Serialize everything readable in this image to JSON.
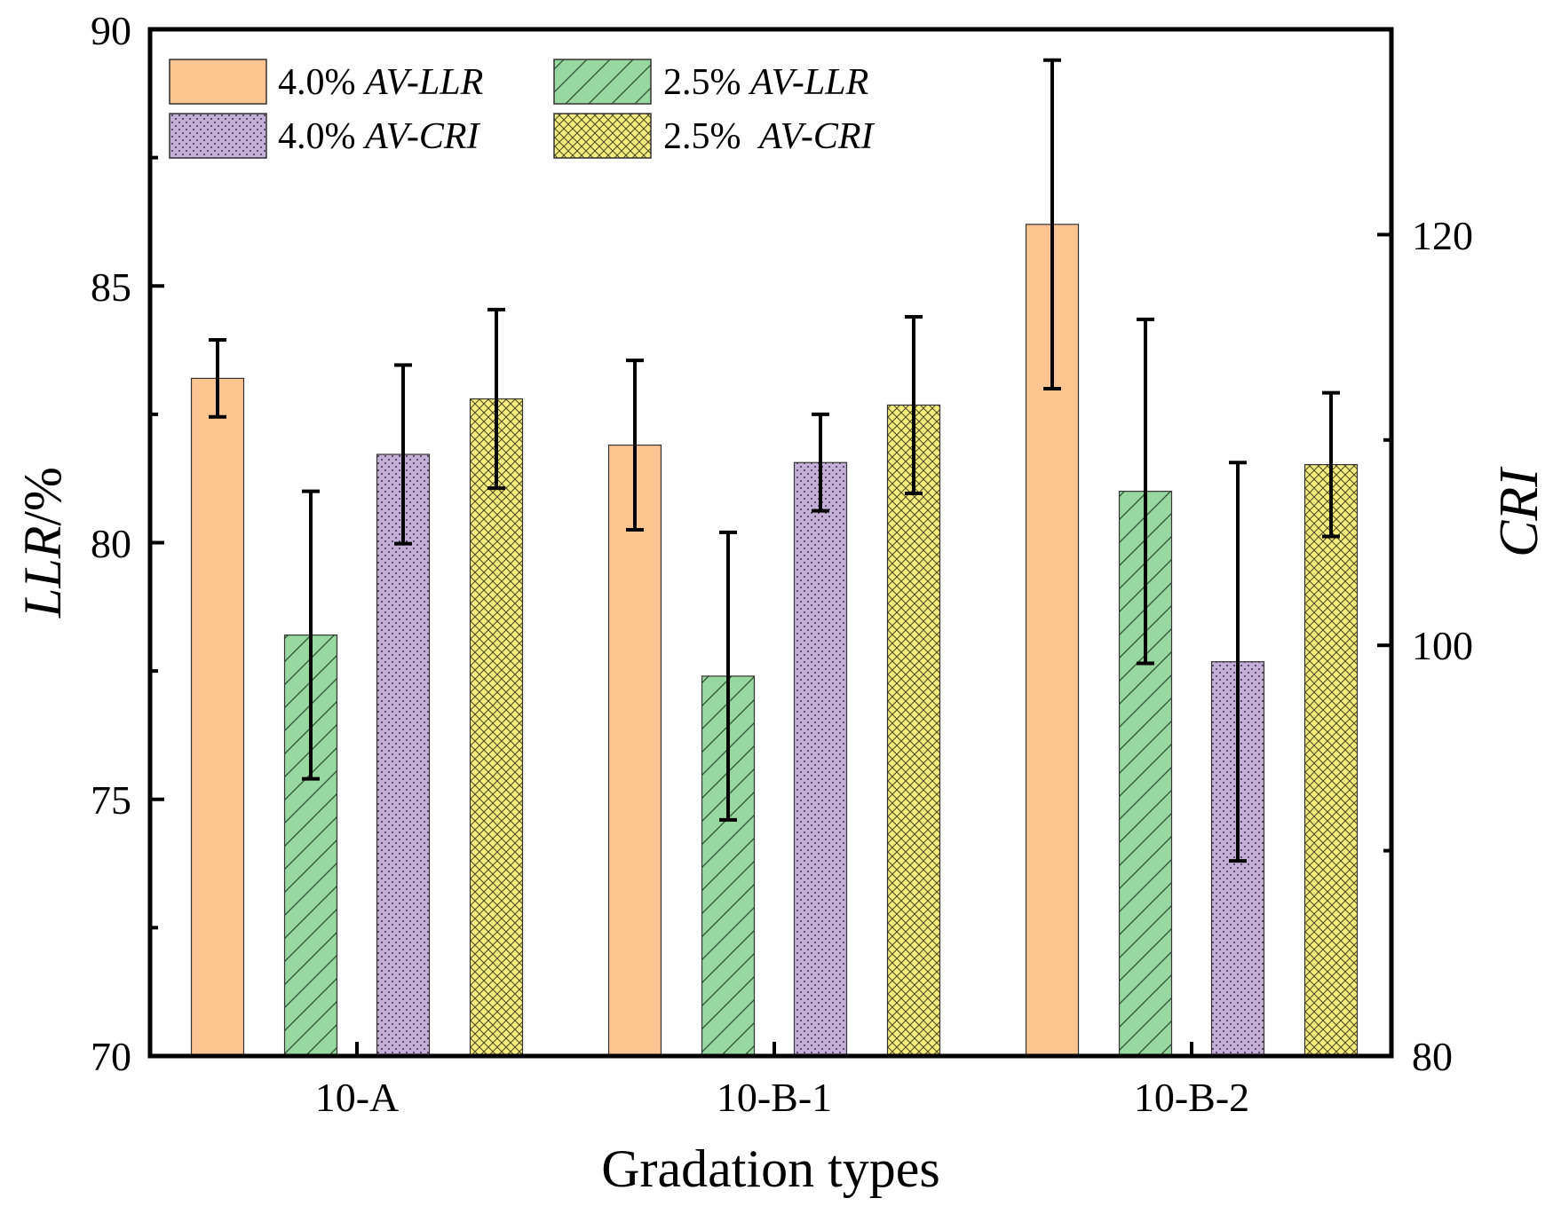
{
  "chart_data": {
    "type": "bar",
    "xlabel": "Gradation types",
    "ylabel_left": {
      "italic": "LLR",
      "plain": "/%"
    },
    "ylabel_right": "CRI",
    "categories": [
      "10-A",
      "10-B-1",
      "10-B-2"
    ],
    "y_left": {
      "lim": [
        70,
        90
      ],
      "ticks": [
        "70",
        "75",
        "80",
        "85",
        "90"
      ],
      "tick_values": [
        70,
        75,
        80,
        85,
        90
      ]
    },
    "y_right": {
      "lim": [
        80,
        130
      ],
      "ticks": [
        "80",
        "100",
        "120"
      ],
      "tick_values": [
        80,
        100,
        120
      ]
    },
    "grid": false,
    "legend_position": "top-left",
    "colors": {
      "llr_4": "#fbc592",
      "llr_25": "#98d8a0",
      "cri_4": "#c3aed8",
      "cri_25": "#f4ec7e",
      "edge": "#333333"
    },
    "series": [
      {
        "key": "llr_4",
        "legend_plain": "4.0%",
        "legend_italic": "AV-LLR",
        "axis": "left",
        "pattern": "solid",
        "values": [
          83.2,
          81.9,
          86.2
        ],
        "errors": [
          0.75,
          1.65,
          3.2
        ]
      },
      {
        "key": "llr_25",
        "legend_plain": "2.5%",
        "legend_italic": "AV-LLR",
        "axis": "left",
        "pattern": "hatch",
        "values": [
          78.2,
          77.4,
          81.0
        ],
        "errors": [
          2.8,
          2.8,
          3.35
        ]
      },
      {
        "key": "cri_4",
        "legend_plain": "4.0%",
        "legend_italic": "AV-CRI",
        "axis": "right",
        "pattern": "dots",
        "values": [
          109.3,
          108.9,
          99.2
        ],
        "errors": [
          4.35,
          2.35,
          9.7
        ]
      },
      {
        "key": "cri_25",
        "legend_plain": "2.5%",
        "legend_italic": "AV-CRI",
        "axis": "right",
        "pattern": "crosshatch",
        "values": [
          112.0,
          111.7,
          108.8
        ],
        "errors": [
          4.35,
          4.3,
          3.5
        ]
      }
    ]
  }
}
